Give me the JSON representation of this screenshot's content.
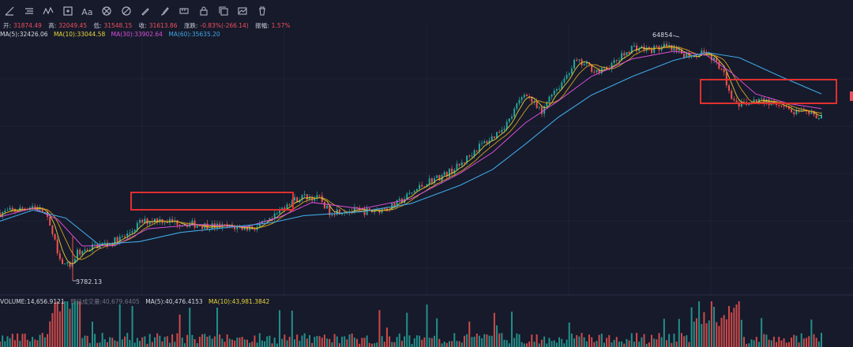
{
  "toolbar": {
    "tools": [
      {
        "name": "trend-line-icon"
      },
      {
        "name": "horizontal-lines-icon"
      },
      {
        "name": "wave-pattern-icon"
      },
      {
        "name": "range-measure-icon"
      },
      {
        "name": "text-tool-icon",
        "text": "Aa"
      },
      {
        "name": "magnet-icon"
      },
      {
        "name": "hide-drawings-icon"
      },
      {
        "name": "pencil-icon"
      },
      {
        "name": "brush-icon"
      },
      {
        "name": "ruler-icon"
      },
      {
        "name": "lock-icon"
      },
      {
        "name": "copy-icon"
      },
      {
        "name": "screenshot-icon"
      },
      {
        "name": "delete-icon"
      }
    ]
  },
  "ohlc": {
    "open_label": "开:",
    "open": "31874.49",
    "high_label": "高:",
    "high": "32049.45",
    "low_label": "低:",
    "low": "31548.15",
    "close_label": "收:",
    "close": "31613.86",
    "change_label": "涨跌:",
    "change": "-0.83%(-266.14)",
    "amplitude_label": "振幅:",
    "amplitude": "1.57%"
  },
  "ma": {
    "ma5": "MA(5):32426.06",
    "ma10": "MA(10):33044.58",
    "ma30": "MA(30):33902.64",
    "ma60": "MA(60):35635.20"
  },
  "volume": {
    "vol": "VOLUME:14,656.9121",
    "est": "预估成交量:40,679.6405",
    "ma5": "MA(5):40,476.4153",
    "ma10": "MA(10):43,981.3842"
  },
  "colors": {
    "background": "#161a2b",
    "up": "#26a69a",
    "down": "#ef5350",
    "ma5": "#e8d43b",
    "ma10": "#d9a020",
    "ma30": "#d94fd6",
    "ma60": "#3fa7e3",
    "highlight_box": "#e0302f"
  },
  "chart_data": {
    "type": "candlestick",
    "annotations": {
      "high": {
        "label": "64854",
        "value": 64854
      },
      "low": {
        "label": "3782.13",
        "value": 3782.13
      }
    },
    "price_trend": [
      {
        "t": 0,
        "v": 20800
      },
      {
        "t": 2.5,
        "v": 21700
      },
      {
        "t": 4,
        "v": 22600
      },
      {
        "t": 5.5,
        "v": 20700
      },
      {
        "t": 6.5,
        "v": 14500
      },
      {
        "t": 7.5,
        "v": 8600
      },
      {
        "t": 8.5,
        "v": 7400
      },
      {
        "t": 9.5,
        "v": 10900
      },
      {
        "t": 11.5,
        "v": 12500
      },
      {
        "t": 13.5,
        "v": 13300
      },
      {
        "t": 15.5,
        "v": 15200
      },
      {
        "t": 17,
        "v": 18300
      },
      {
        "t": 19,
        "v": 19200
      },
      {
        "t": 22,
        "v": 18300
      },
      {
        "t": 25,
        "v": 17600
      },
      {
        "t": 28,
        "v": 17200
      },
      {
        "t": 31,
        "v": 17100
      },
      {
        "t": 33,
        "v": 18700
      },
      {
        "t": 35,
        "v": 23400
      },
      {
        "t": 37,
        "v": 24900
      },
      {
        "t": 39,
        "v": 24300
      },
      {
        "t": 40,
        "v": 21100
      },
      {
        "t": 42,
        "v": 21500
      },
      {
        "t": 45,
        "v": 21100
      },
      {
        "t": 48,
        "v": 22600
      },
      {
        "t": 50,
        "v": 25600
      },
      {
        "t": 52,
        "v": 28600
      },
      {
        "t": 54,
        "v": 30200
      },
      {
        "t": 56,
        "v": 32700
      },
      {
        "t": 58,
        "v": 37000
      },
      {
        "t": 60,
        "v": 39800
      },
      {
        "t": 62,
        "v": 44000
      },
      {
        "t": 63,
        "v": 47900
      },
      {
        "t": 64,
        "v": 51300
      },
      {
        "t": 65,
        "v": 47900
      },
      {
        "t": 66,
        "v": 45500
      },
      {
        "t": 67,
        "v": 50900
      },
      {
        "t": 68,
        "v": 52300
      },
      {
        "t": 70,
        "v": 58700
      },
      {
        "t": 71.5,
        "v": 57700
      },
      {
        "t": 73,
        "v": 56000
      },
      {
        "t": 75,
        "v": 58700
      },
      {
        "t": 77,
        "v": 62400
      },
      {
        "t": 79,
        "v": 61700
      },
      {
        "t": 81,
        "v": 62400
      },
      {
        "t": 82.5,
        "v": 61000
      },
      {
        "t": 84,
        "v": 60300
      },
      {
        "t": 86,
        "v": 61300
      },
      {
        "t": 88,
        "v": 56000
      },
      {
        "t": 89,
        "v": 50300
      },
      {
        "t": 90,
        "v": 48200
      },
      {
        "t": 93,
        "v": 48900
      },
      {
        "t": 95,
        "v": 47200
      },
      {
        "t": 97,
        "v": 45800
      },
      {
        "t": 99,
        "v": 45500
      },
      {
        "t": 100,
        "v": 45100
      }
    ],
    "ma60_trend": [
      {
        "t": 0,
        "v": 18700
      },
      {
        "t": 4,
        "v": 21500
      },
      {
        "t": 8,
        "v": 19500
      },
      {
        "t": 12,
        "v": 12900
      },
      {
        "t": 17,
        "v": 13600
      },
      {
        "t": 22,
        "v": 15900
      },
      {
        "t": 28,
        "v": 17200
      },
      {
        "t": 33,
        "v": 18300
      },
      {
        "t": 37,
        "v": 20100
      },
      {
        "t": 44,
        "v": 21100
      },
      {
        "t": 50,
        "v": 23100
      },
      {
        "t": 56,
        "v": 27700
      },
      {
        "t": 60,
        "v": 31700
      },
      {
        "t": 64,
        "v": 38100
      },
      {
        "t": 68,
        "v": 44800
      },
      {
        "t": 72,
        "v": 50300
      },
      {
        "t": 77,
        "v": 55000
      },
      {
        "t": 82,
        "v": 59000
      },
      {
        "t": 86,
        "v": 61000
      },
      {
        "t": 90,
        "v": 59700
      },
      {
        "t": 95,
        "v": 55000
      },
      {
        "t": 100,
        "v": 50600
      }
    ],
    "ma30_trend": [
      {
        "t": 0,
        "v": 19800
      },
      {
        "t": 4,
        "v": 22000
      },
      {
        "t": 7,
        "v": 19200
      },
      {
        "t": 10,
        "v": 12500
      },
      {
        "t": 14,
        "v": 12600
      },
      {
        "t": 18,
        "v": 16800
      },
      {
        "t": 24,
        "v": 17900
      },
      {
        "t": 30,
        "v": 17300
      },
      {
        "t": 34,
        "v": 19700
      },
      {
        "t": 38,
        "v": 23400
      },
      {
        "t": 44,
        "v": 21800
      },
      {
        "t": 50,
        "v": 24300
      },
      {
        "t": 56,
        "v": 30700
      },
      {
        "t": 60,
        "v": 36000
      },
      {
        "t": 64,
        "v": 43400
      },
      {
        "t": 68,
        "v": 48900
      },
      {
        "t": 72,
        "v": 55000
      },
      {
        "t": 77,
        "v": 59400
      },
      {
        "t": 82,
        "v": 61300
      },
      {
        "t": 86,
        "v": 60300
      },
      {
        "t": 89,
        "v": 56000
      },
      {
        "t": 92,
        "v": 50600
      },
      {
        "t": 96,
        "v": 48200
      },
      {
        "t": 100,
        "v": 46900
      }
    ]
  }
}
